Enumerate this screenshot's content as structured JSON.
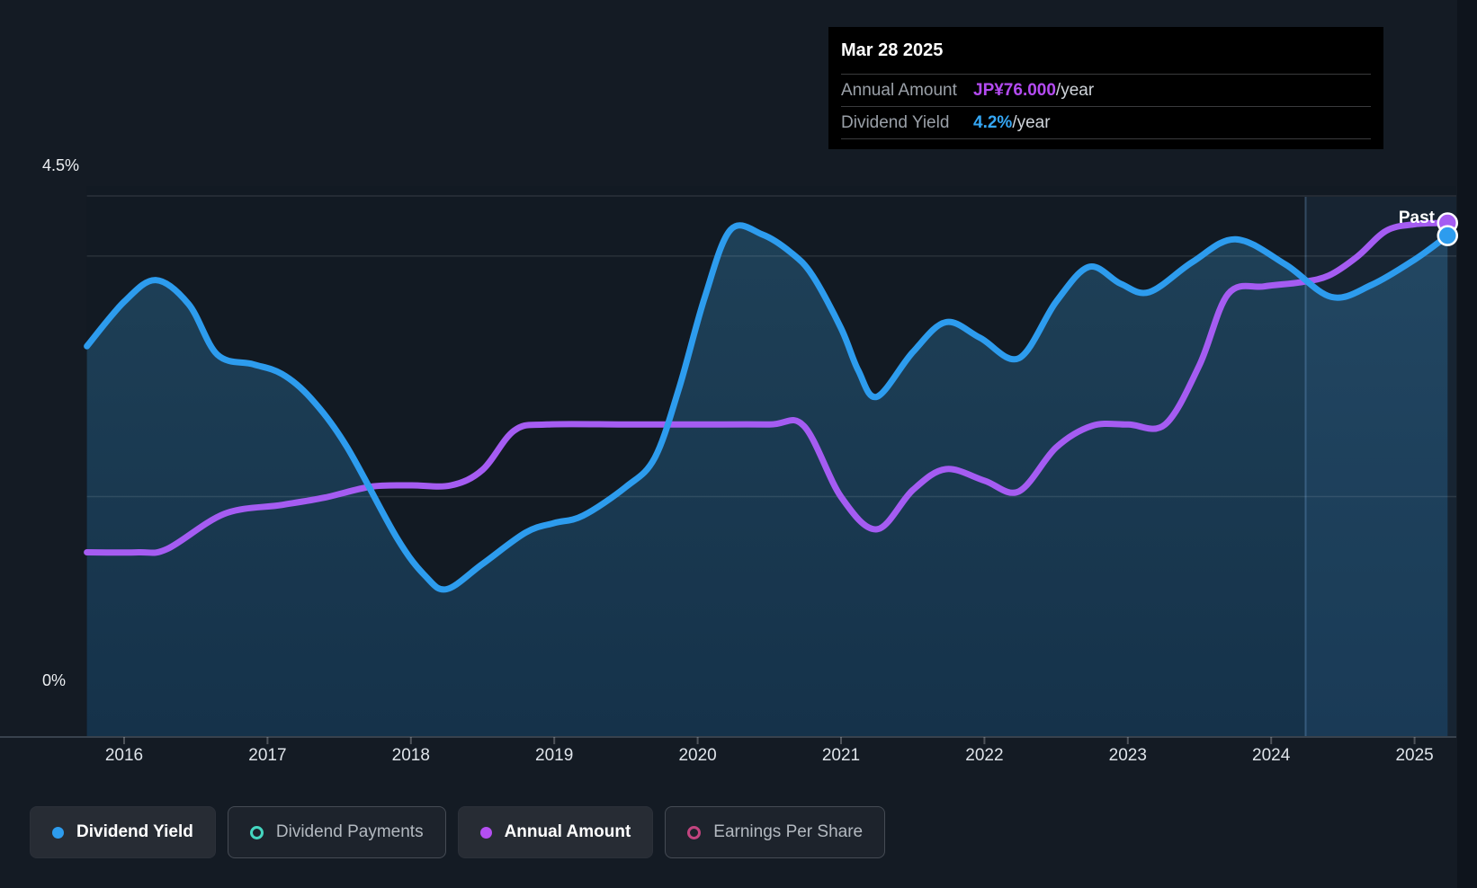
{
  "colors": {
    "page_bg": "#141b24",
    "plot_bg": "#121a23",
    "yield_line": "#2d9cee",
    "amount_line": "#a55cf2",
    "tooltip_amount_value": "#b44bf2",
    "tooltip_yield_value": "#35a7f5",
    "legend_yield_dot": "#2d9cee",
    "legend_payments_ring": "#45d6c0",
    "legend_amount_dot": "#b44ff2",
    "legend_eps_ring": "#c2447f"
  },
  "tooltip": {
    "date": "Mar 28 2025",
    "rows": [
      {
        "label": "Annual Amount",
        "value": "JP¥76.000",
        "suffix": "/year",
        "color": "#b44bf2"
      },
      {
        "label": "Dividend Yield",
        "value": "4.2%",
        "suffix": "/year",
        "color": "#35a7f5"
      }
    ]
  },
  "axis": {
    "y_top_label": "4.5%",
    "y_bottom_label": "0%",
    "x_labels": [
      "2016",
      "2017",
      "2018",
      "2019",
      "2020",
      "2021",
      "2022",
      "2023",
      "2024",
      "2025"
    ]
  },
  "past_label": "Past",
  "legend": [
    {
      "label": "Dividend Yield",
      "color": "#2d9cee",
      "style": "filled",
      "active": true
    },
    {
      "label": "Dividend Payments",
      "color": "#45d6c0",
      "style": "ring",
      "active": false
    },
    {
      "label": "Annual Amount",
      "color": "#b44ff2",
      "style": "filled",
      "active": true
    },
    {
      "label": "Earnings Per Share",
      "color": "#c2447f",
      "style": "ring",
      "active": false
    }
  ],
  "chart_data": {
    "type": "line",
    "x_range": [
      2015.74,
      2025.23
    ],
    "x_ticks": [
      2016,
      2017,
      2018,
      2019,
      2020,
      2021,
      2022,
      2023,
      2024,
      2025
    ],
    "past_region_start": 2024.24,
    "gridlines_pct": [
      4.5,
      4.0,
      2.0,
      0
    ],
    "ylim_pct": [
      0,
      4.5
    ],
    "series": [
      {
        "name": "Dividend Yield",
        "unit": "%",
        "color": "#2d9cee",
        "fill": true,
        "end_value": "4.2%",
        "points": [
          [
            2015.74,
            3.25
          ],
          [
            2016.0,
            3.62
          ],
          [
            2016.22,
            3.8
          ],
          [
            2016.45,
            3.6
          ],
          [
            2016.65,
            3.18
          ],
          [
            2016.9,
            3.1
          ],
          [
            2017.1,
            3.02
          ],
          [
            2017.3,
            2.82
          ],
          [
            2017.55,
            2.42
          ],
          [
            2017.9,
            1.66
          ],
          [
            2018.1,
            1.34
          ],
          [
            2018.25,
            1.23
          ],
          [
            2018.5,
            1.44
          ],
          [
            2018.8,
            1.7
          ],
          [
            2019.0,
            1.78
          ],
          [
            2019.2,
            1.84
          ],
          [
            2019.5,
            2.08
          ],
          [
            2019.7,
            2.32
          ],
          [
            2019.87,
            2.9
          ],
          [
            2020.05,
            3.66
          ],
          [
            2020.23,
            4.22
          ],
          [
            2020.45,
            4.18
          ],
          [
            2020.65,
            4.03
          ],
          [
            2020.8,
            3.84
          ],
          [
            2021.0,
            3.4
          ],
          [
            2021.12,
            3.05
          ],
          [
            2021.25,
            2.83
          ],
          [
            2021.5,
            3.2
          ],
          [
            2021.73,
            3.45
          ],
          [
            2021.97,
            3.32
          ],
          [
            2022.24,
            3.15
          ],
          [
            2022.5,
            3.62
          ],
          [
            2022.73,
            3.91
          ],
          [
            2022.95,
            3.77
          ],
          [
            2023.15,
            3.7
          ],
          [
            2023.45,
            3.95
          ],
          [
            2023.75,
            4.14
          ],
          [
            2024.1,
            3.93
          ],
          [
            2024.42,
            3.66
          ],
          [
            2024.7,
            3.76
          ],
          [
            2025.0,
            3.97
          ],
          [
            2025.23,
            4.17
          ]
        ]
      },
      {
        "name": "Annual Amount",
        "unit": "JP¥",
        "color": "#a55cf2",
        "fill": false,
        "end_value": "JP¥76.000",
        "points": [
          [
            2015.74,
            27.3
          ],
          [
            2016.1,
            27.3
          ],
          [
            2016.3,
            27.8
          ],
          [
            2016.7,
            33.0
          ],
          [
            2017.1,
            34.3
          ],
          [
            2017.4,
            35.4
          ],
          [
            2017.72,
            37.0
          ],
          [
            2018.0,
            37.2
          ],
          [
            2018.28,
            37.2
          ],
          [
            2018.5,
            39.5
          ],
          [
            2018.72,
            45.3
          ],
          [
            2018.95,
            46.2
          ],
          [
            2019.5,
            46.2
          ],
          [
            2020.0,
            46.2
          ],
          [
            2020.5,
            46.2
          ],
          [
            2020.74,
            46.0
          ],
          [
            2021.0,
            35.5
          ],
          [
            2021.25,
            30.7
          ],
          [
            2021.5,
            36.5
          ],
          [
            2021.73,
            39.6
          ],
          [
            2022.0,
            37.9
          ],
          [
            2022.24,
            36.3
          ],
          [
            2022.5,
            42.8
          ],
          [
            2022.75,
            46.0
          ],
          [
            2023.0,
            46.2
          ],
          [
            2023.26,
            46.2
          ],
          [
            2023.5,
            55.0
          ],
          [
            2023.7,
            65.5
          ],
          [
            2023.95,
            66.6
          ],
          [
            2024.2,
            67.2
          ],
          [
            2024.4,
            68.2
          ],
          [
            2024.6,
            71.0
          ],
          [
            2024.8,
            74.8
          ],
          [
            2025.0,
            75.8
          ],
          [
            2025.23,
            76.0
          ]
        ]
      }
    ]
  }
}
